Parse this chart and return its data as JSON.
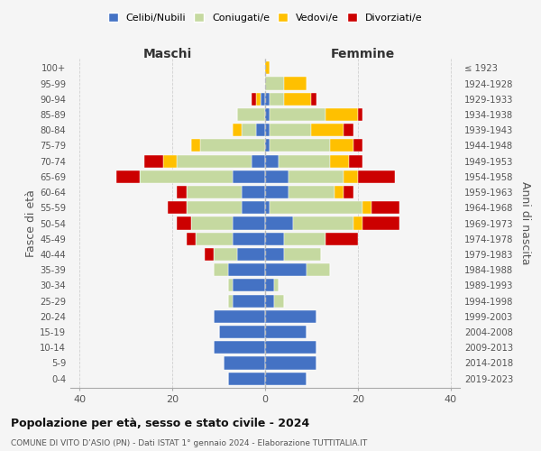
{
  "age_groups": [
    "0-4",
    "5-9",
    "10-14",
    "15-19",
    "20-24",
    "25-29",
    "30-34",
    "35-39",
    "40-44",
    "45-49",
    "50-54",
    "55-59",
    "60-64",
    "65-69",
    "70-74",
    "75-79",
    "80-84",
    "85-89",
    "90-94",
    "95-99",
    "100+"
  ],
  "birth_years": [
    "2019-2023",
    "2014-2018",
    "2009-2013",
    "2004-2008",
    "1999-2003",
    "1994-1998",
    "1989-1993",
    "1984-1988",
    "1979-1983",
    "1974-1978",
    "1969-1973",
    "1964-1968",
    "1959-1963",
    "1954-1958",
    "1949-1953",
    "1944-1948",
    "1939-1943",
    "1934-1938",
    "1929-1933",
    "1924-1928",
    "≤ 1923"
  ],
  "colors": {
    "celibi": "#4472c4",
    "coniugati": "#c5d9a0",
    "vedovi": "#ffc000",
    "divorziati": "#cc0000"
  },
  "maschi": {
    "celibi": [
      8,
      9,
      11,
      10,
      11,
      7,
      7,
      8,
      6,
      7,
      7,
      5,
      5,
      7,
      3,
      0,
      2,
      0,
      1,
      0,
      0
    ],
    "coniugati": [
      0,
      0,
      0,
      0,
      0,
      1,
      1,
      3,
      5,
      8,
      9,
      12,
      12,
      20,
      16,
      14,
      3,
      6,
      0,
      0,
      0
    ],
    "vedovi": [
      0,
      0,
      0,
      0,
      0,
      0,
      0,
      0,
      0,
      0,
      0,
      0,
      0,
      0,
      3,
      2,
      2,
      0,
      1,
      0,
      0
    ],
    "divorziati": [
      0,
      0,
      0,
      0,
      0,
      0,
      0,
      0,
      2,
      2,
      3,
      4,
      2,
      5,
      4,
      0,
      0,
      0,
      1,
      0,
      0
    ]
  },
  "femmine": {
    "celibi": [
      9,
      11,
      11,
      9,
      11,
      2,
      2,
      9,
      4,
      4,
      6,
      1,
      5,
      5,
      3,
      1,
      1,
      1,
      1,
      0,
      0
    ],
    "coniugati": [
      0,
      0,
      0,
      0,
      0,
      2,
      1,
      5,
      8,
      9,
      13,
      20,
      10,
      12,
      11,
      13,
      9,
      12,
      3,
      4,
      0
    ],
    "vedovi": [
      0,
      0,
      0,
      0,
      0,
      0,
      0,
      0,
      0,
      0,
      2,
      2,
      2,
      3,
      4,
      5,
      7,
      7,
      6,
      5,
      1
    ],
    "divorziati": [
      0,
      0,
      0,
      0,
      0,
      0,
      0,
      0,
      0,
      7,
      8,
      6,
      2,
      8,
      3,
      2,
      2,
      1,
      1,
      0,
      0
    ]
  },
  "xlim": 42,
  "title": "Popolazione per età, sesso e stato civile - 2024",
  "subtitle": "COMUNE DI VITO D’ASIO (PN) - Dati ISTAT 1° gennaio 2024 - Elaborazione TUTTITALIA.IT",
  "ylabel_left": "Fasce di età",
  "ylabel_right": "Anni di nascita",
  "xlabel_maschi": "Maschi",
  "xlabel_femmine": "Femmine",
  "legend_labels": [
    "Celibi/Nubili",
    "Coniugati/e",
    "Vedovi/e",
    "Divorziati/e"
  ],
  "bg_color": "#f5f5f5",
  "grid_color": "#cccccc"
}
